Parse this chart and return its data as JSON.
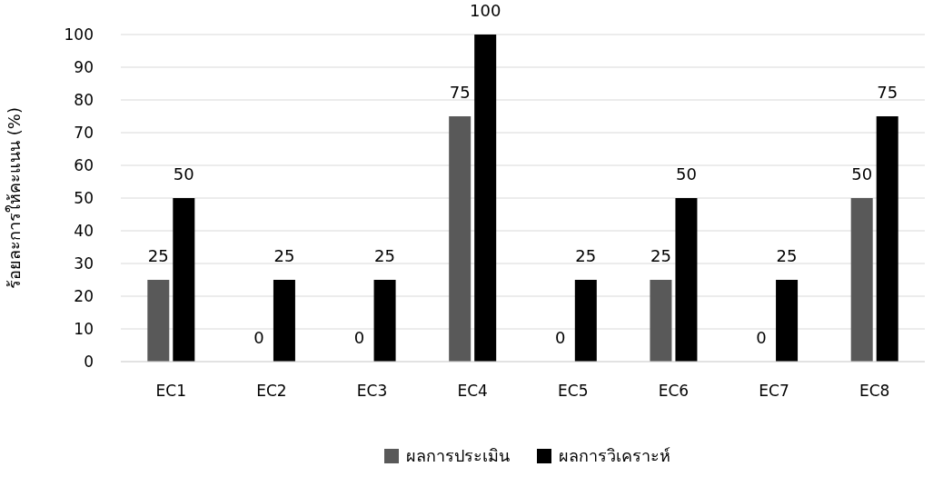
{
  "chart_data": {
    "type": "bar",
    "ylabel": "ร้อยละการให้คะแนน (%)",
    "categories": [
      "EC1",
      "EC2",
      "EC3",
      "EC4",
      "EC5",
      "EC6",
      "EC7",
      "EC8"
    ],
    "series": [
      {
        "name": "ผลการประเมิน",
        "color": "#595959",
        "values": [
          25,
          0,
          0,
          75,
          0,
          25,
          0,
          50
        ]
      },
      {
        "name": "ผลการวิเคราะห์",
        "color": "#000000",
        "values": [
          50,
          25,
          25,
          100,
          25,
          50,
          25,
          75
        ]
      }
    ],
    "ylim": [
      0,
      100
    ],
    "yticks": [
      0,
      10,
      20,
      30,
      40,
      50,
      60,
      70,
      80,
      90,
      100
    ],
    "grid": "y",
    "legend": "bottom",
    "data_labels": true
  }
}
